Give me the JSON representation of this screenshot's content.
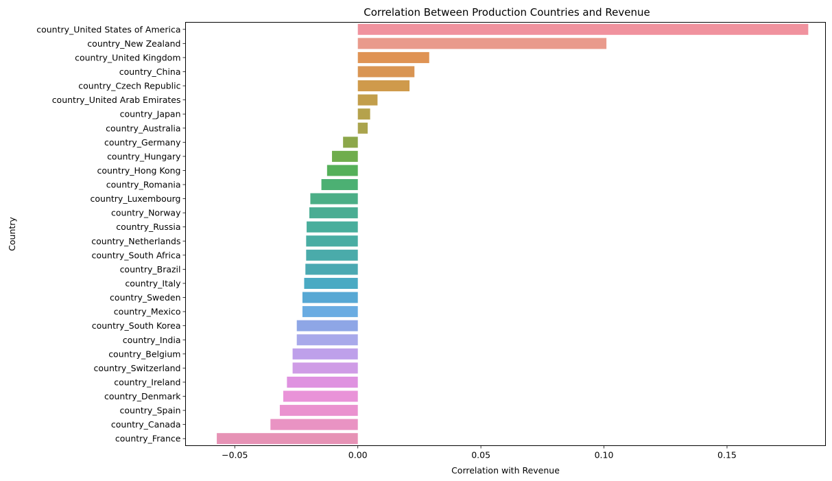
{
  "chart_data": {
    "type": "bar",
    "orientation": "horizontal",
    "title": "Correlation Between Production Countries and Revenue",
    "xlabel": "Correlation with Revenue",
    "ylabel": "Country",
    "xlim": [
      -0.07,
      0.19
    ],
    "xticks": [
      -0.05,
      0.0,
      0.05,
      0.1,
      0.15
    ],
    "xtick_labels": [
      "−0.05",
      "0.00",
      "0.05",
      "0.10",
      "0.15"
    ],
    "grid": false,
    "categories": [
      "country_United States of America",
      "country_New Zealand",
      "country_United Kingdom",
      "country_China",
      "country_Czech Republic",
      "country_United Arab Emirates",
      "country_Japan",
      "country_Australia",
      "country_Germany",
      "country_Hungary",
      "country_Hong Kong",
      "country_Romania",
      "country_Luxembourg",
      "country_Norway",
      "country_Russia",
      "country_Netherlands",
      "country_South Africa",
      "country_Brazil",
      "country_Italy",
      "country_Sweden",
      "country_Mexico",
      "country_South Korea",
      "country_India",
      "country_Belgium",
      "country_Switzerland",
      "country_Ireland",
      "country_Denmark",
      "country_Spain",
      "country_Canada",
      "country_France"
    ],
    "values": [
      0.183,
      0.101,
      0.029,
      0.023,
      0.021,
      0.008,
      0.005,
      0.004,
      -0.006,
      -0.0105,
      -0.0125,
      -0.0148,
      -0.0193,
      -0.0197,
      -0.0208,
      -0.021,
      -0.021,
      -0.0213,
      -0.0218,
      -0.0225,
      -0.0225,
      -0.0248,
      -0.0248,
      -0.0265,
      -0.0265,
      -0.0288,
      -0.0303,
      -0.0317,
      -0.0355,
      -0.0573
    ],
    "colors": [
      "#f0929e",
      "#e99a8c",
      "#df9354",
      "#d99553",
      "#cf9a4b",
      "#c29e4b",
      "#b5a24c",
      "#aaa44d",
      "#8ca74a",
      "#6fad4d",
      "#55b05a",
      "#4cb073",
      "#4bae86",
      "#4aad93",
      "#49ae9c",
      "#49ada3",
      "#4aabaa",
      "#4ba9b2",
      "#4aaac3",
      "#57a8d4",
      "#6aace2",
      "#8ea6e6",
      "#a8a9ea",
      "#bea0ea",
      "#cf9ce6",
      "#df92e0",
      "#e993d8",
      "#ea92cf",
      "#e993c3",
      "#e692b5"
    ]
  }
}
